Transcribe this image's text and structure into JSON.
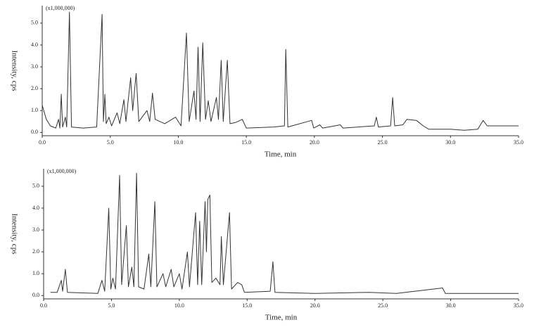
{
  "chart_data": [
    {
      "type": "line",
      "multiplier": "(x1,000,000)",
      "x_label": "Time, min",
      "y_label": "Intensity, cps",
      "color": "#333333",
      "xlim": [
        0,
        35
      ],
      "ylim": [
        -0.15,
        5.8
      ],
      "xticks": [
        {
          "value": 0,
          "label": "0.0"
        },
        {
          "value": 5,
          "label": "5.0"
        },
        {
          "value": 10,
          "label": "10.0"
        },
        {
          "value": 15,
          "label": "15.0"
        },
        {
          "value": 20,
          "label": "20.0"
        },
        {
          "value": 25,
          "label": "25.0"
        },
        {
          "value": 30,
          "label": "30.0"
        },
        {
          "value": 35,
          "label": "35.0"
        }
      ],
      "yticks": [
        {
          "value": 0,
          "label": "0.0"
        },
        {
          "value": 1,
          "label": "1.0"
        },
        {
          "value": 2,
          "label": "2.0"
        },
        {
          "value": 3,
          "label": "3.0"
        },
        {
          "value": 4,
          "label": "4.0"
        },
        {
          "value": 5,
          "label": "5.0"
        }
      ],
      "x": [
        0.0,
        0.3,
        0.6,
        1.0,
        1.2,
        1.3,
        1.4,
        1.5,
        1.7,
        1.8,
        2.0,
        2.15,
        3.0,
        4.0,
        4.4,
        4.5,
        4.6,
        4.7,
        4.9,
        5.1,
        5.5,
        5.7,
        6.0,
        6.15,
        6.5,
        6.65,
        6.9,
        7.1,
        7.7,
        7.9,
        8.1,
        8.3,
        9.0,
        9.8,
        10.2,
        10.6,
        10.8,
        11.15,
        11.3,
        11.45,
        11.6,
        11.8,
        12.0,
        12.2,
        12.4,
        12.8,
        12.95,
        13.15,
        13.3,
        13.6,
        13.8,
        14.2,
        14.7,
        15.0,
        17.0,
        17.8,
        17.9,
        18.05,
        19.8,
        19.95,
        20.4,
        20.6,
        21.5,
        21.9,
        22.1,
        24.4,
        24.55,
        24.7,
        25.6,
        25.75,
        25.9,
        26.5,
        26.8,
        27.5,
        28.0,
        28.4,
        30.0,
        31.0,
        32.0,
        32.4,
        32.7,
        35.0
      ],
      "values": [
        1.25,
        0.6,
        0.3,
        0.2,
        0.6,
        0.2,
        1.75,
        0.25,
        0.7,
        0.25,
        5.5,
        0.25,
        0.2,
        0.25,
        5.4,
        0.5,
        1.75,
        0.4,
        0.7,
        0.3,
        0.9,
        0.4,
        1.5,
        0.5,
        2.5,
        1.0,
        2.7,
        0.5,
        1.0,
        0.5,
        1.8,
        0.6,
        0.4,
        0.7,
        0.3,
        4.55,
        0.5,
        1.9,
        0.6,
        3.9,
        0.5,
        4.1,
        0.6,
        1.45,
        0.5,
        1.6,
        0.6,
        3.3,
        0.5,
        3.3,
        0.4,
        0.45,
        0.6,
        0.2,
        0.25,
        0.3,
        3.8,
        0.25,
        0.55,
        0.2,
        0.35,
        0.2,
        0.3,
        0.35,
        0.2,
        0.3,
        0.7,
        0.25,
        0.3,
        1.6,
        0.3,
        0.35,
        0.6,
        0.55,
        0.3,
        0.15,
        0.15,
        0.1,
        0.15,
        0.55,
        0.3,
        0.3
      ]
    },
    {
      "type": "line",
      "multiplier": "(x1,000,000)",
      "x_label": "Time, min",
      "y_label": "Intensity, cps",
      "color": "#333333",
      "xlim": [
        0,
        35
      ],
      "ylim": [
        -0.15,
        5.8
      ],
      "xticks": [
        {
          "value": 0,
          "label": "0.0"
        },
        {
          "value": 5,
          "label": "5.0"
        },
        {
          "value": 10,
          "label": "10.0"
        },
        {
          "value": 15,
          "label": "15.0"
        },
        {
          "value": 20,
          "label": "20.0"
        },
        {
          "value": 25,
          "label": "25.0"
        },
        {
          "value": 30,
          "label": "30.0"
        },
        {
          "value": 35,
          "label": "35.0"
        }
      ],
      "yticks": [
        {
          "value": 0,
          "label": "0.0"
        },
        {
          "value": 1,
          "label": "1.0"
        },
        {
          "value": 2,
          "label": "2.0"
        },
        {
          "value": 3,
          "label": "3.0"
        },
        {
          "value": 4,
          "label": "4.0"
        },
        {
          "value": 5,
          "label": "5.0"
        }
      ],
      "x": [
        0.5,
        1.0,
        1.3,
        1.4,
        1.6,
        1.75,
        4.0,
        4.3,
        4.5,
        4.8,
        4.95,
        5.1,
        5.3,
        5.6,
        5.75,
        6.1,
        6.25,
        6.5,
        6.65,
        6.85,
        7.0,
        7.4,
        7.75,
        7.9,
        8.2,
        8.35,
        8.8,
        9.0,
        9.4,
        9.6,
        10.0,
        10.2,
        10.6,
        10.75,
        11.2,
        11.35,
        11.5,
        11.65,
        11.9,
        12.0,
        12.1,
        12.25,
        12.4,
        12.7,
        13.0,
        13.1,
        13.25,
        13.7,
        13.85,
        14.3,
        14.6,
        14.8,
        16.7,
        16.9,
        17.05,
        20.0,
        24.0,
        26.0,
        29.4,
        29.6,
        35.0
      ],
      "values": [
        0.15,
        0.15,
        0.7,
        0.2,
        1.2,
        0.15,
        0.1,
        0.7,
        0.2,
        4.0,
        0.3,
        0.8,
        0.3,
        5.5,
        0.5,
        3.2,
        0.4,
        1.3,
        0.4,
        5.6,
        0.4,
        0.3,
        1.9,
        0.4,
        4.3,
        0.4,
        1.0,
        0.4,
        1.2,
        0.4,
        1.0,
        0.3,
        2.0,
        0.4,
        3.8,
        0.5,
        3.4,
        0.5,
        4.3,
        2.0,
        4.4,
        4.6,
        0.6,
        0.8,
        0.5,
        2.7,
        0.5,
        3.8,
        0.3,
        0.6,
        0.5,
        0.15,
        0.2,
        1.55,
        0.15,
        0.1,
        0.15,
        0.1,
        0.35,
        0.1,
        0.1
      ]
    }
  ]
}
